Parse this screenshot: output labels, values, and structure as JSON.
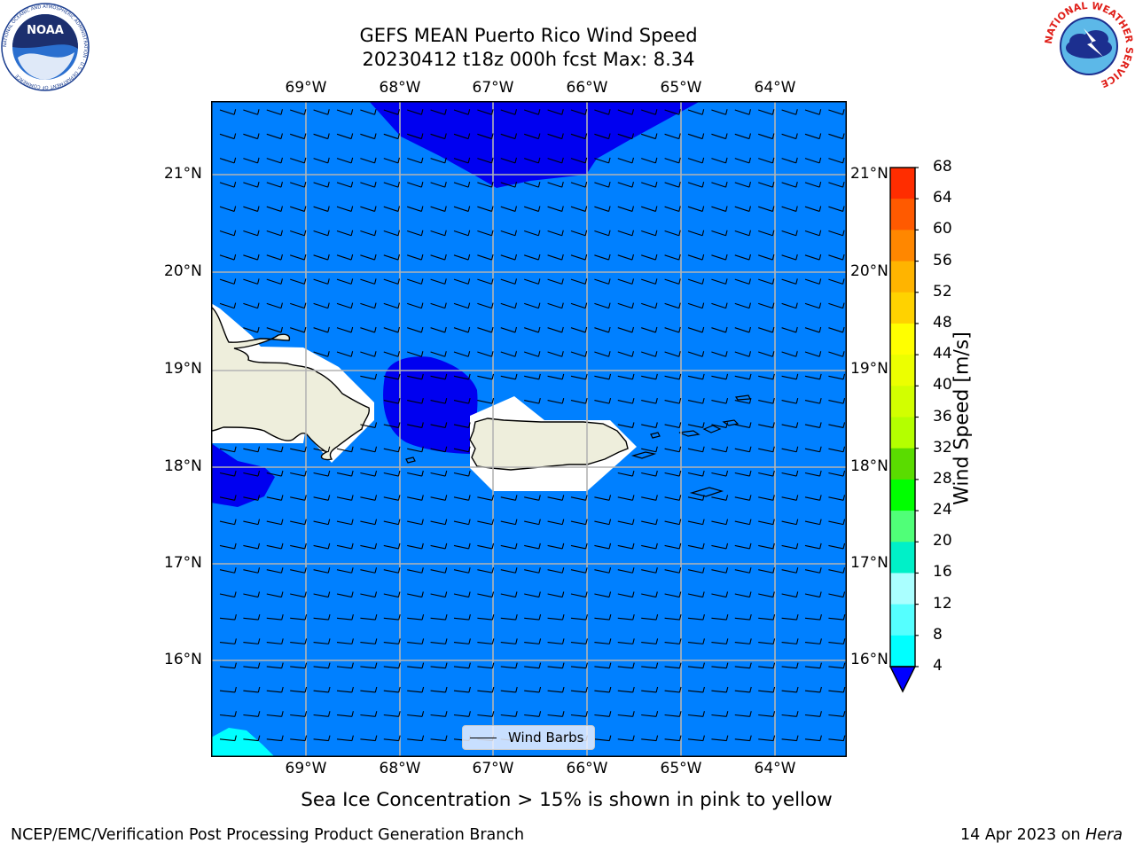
{
  "title_line1": "GEFS MEAN Puerto Rico Wind Speed",
  "title_line2": "20230412 t18z 000h fcst   Max: 8.34",
  "lon_labels": [
    "69°W",
    "68°W",
    "67°W",
    "66°W",
    "65°W",
    "64°W"
  ],
  "lat_labels": [
    "21°N",
    "20°N",
    "19°N",
    "18°N",
    "17°N",
    "16°N"
  ],
  "colorbar": {
    "label": "Wind Speed [m/s]",
    "ticks": [
      "68",
      "64",
      "60",
      "56",
      "52",
      "48",
      "44",
      "40",
      "36",
      "32",
      "28",
      "24",
      "20",
      "16",
      "12",
      "8",
      "4"
    ],
    "colors": [
      "#ff0000",
      "#ff2d00",
      "#ff5a00",
      "#ff8700",
      "#ffb400",
      "#ffd200",
      "#ffff00",
      "#ecff00",
      "#d2ff00",
      "#b4ff00",
      "#5adc00",
      "#00ff00",
      "#50ff78",
      "#00f0c8",
      "#aaffff",
      "#55ffff",
      "#00ffff",
      "#0078ff"
    ],
    "under_color": "#0000ff"
  },
  "legend": {
    "label": "Wind Barbs"
  },
  "note": "Sea Ice Concentration > 15% is shown in pink to yellow",
  "footer_left": "NCEP/EMC/Verification Post Processing Product Generation Branch",
  "footer_date": "14 Apr 2023 on ",
  "footer_host": "Hera",
  "logos": {
    "noaa": {
      "text": "NOAA",
      "ring": "NATIONAL OCEANIC AND ATMOSPHERIC ADMINISTRATION · U.S. DEPARTMENT OF COMMERCE"
    },
    "nws": {
      "ring": "NATIONAL WEATHER SERVICE"
    }
  },
  "map_colors": {
    "ocean": "#0080ff",
    "calm": "#0000f0",
    "cyan": "#00ffff",
    "land": "#eeeedc",
    "mask": "#ffffff"
  }
}
